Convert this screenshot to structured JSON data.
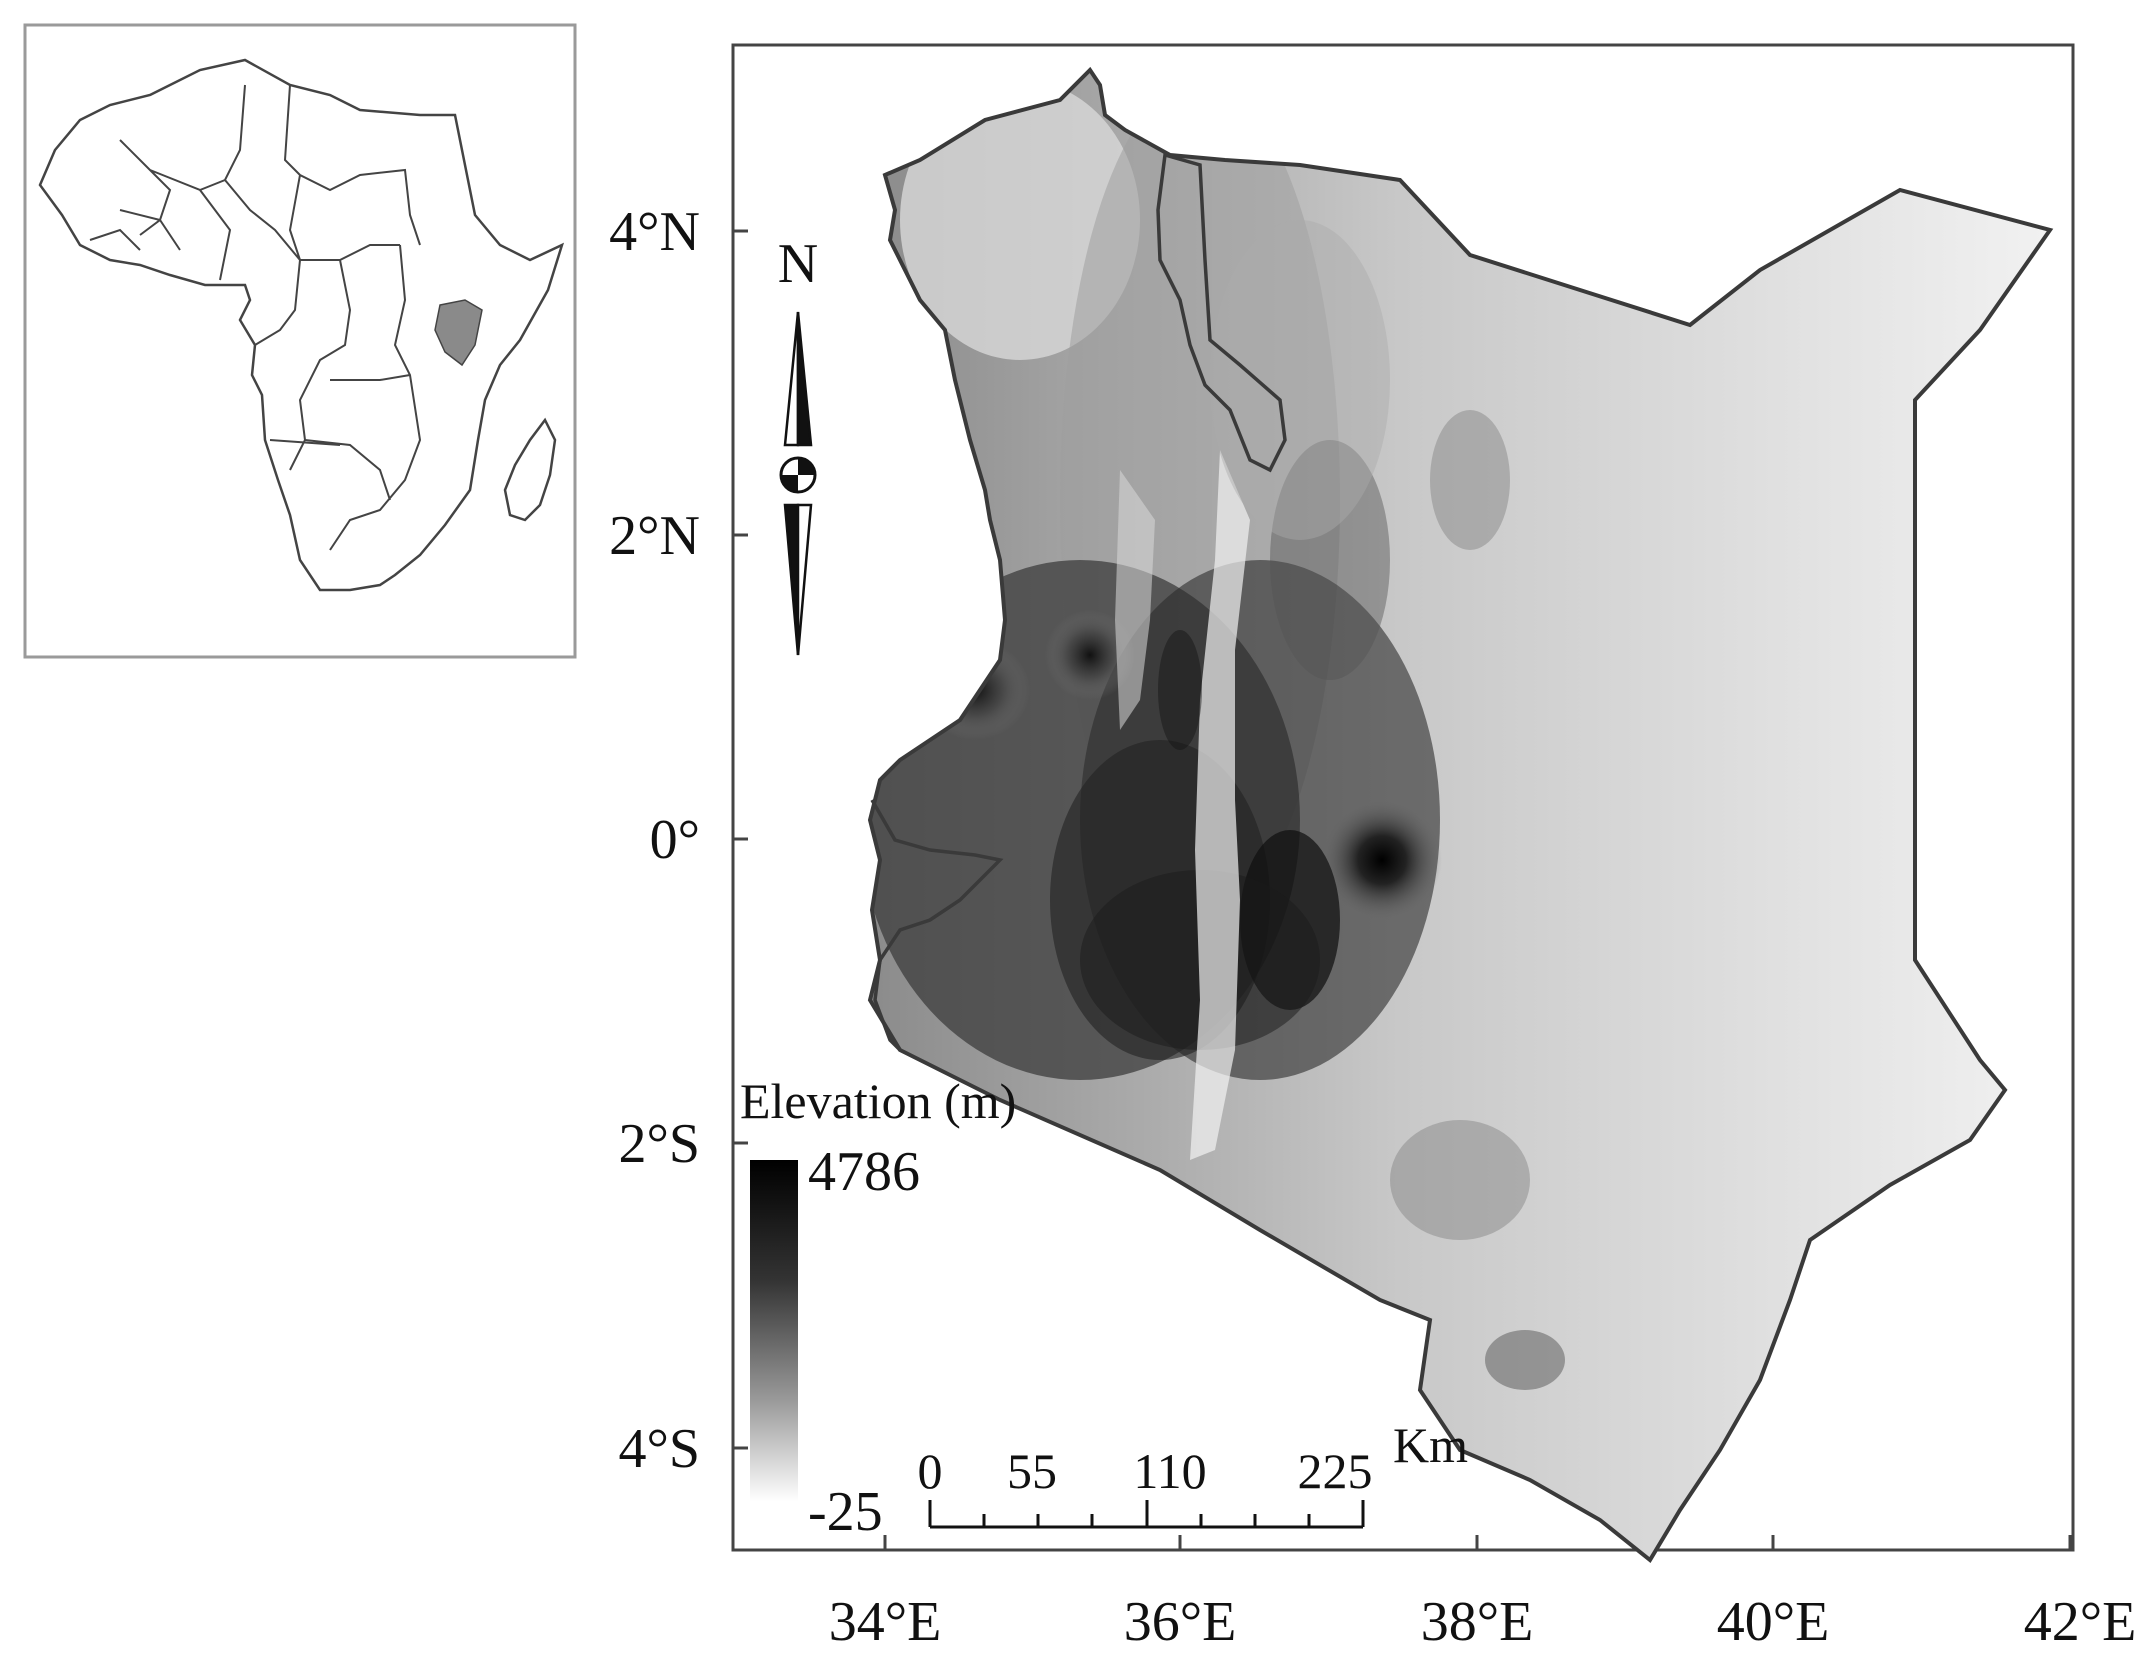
{
  "inset": {
    "highlight_color": "#8a8a8a",
    "border_color": "#9a9a9a"
  },
  "map": {
    "axes": {
      "x_ticks": [
        "34°E",
        "36°E",
        "38°E",
        "40°E",
        "42°E"
      ],
      "y_ticks": [
        "4°N",
        "2°N",
        "0°",
        "2°S",
        "4°S"
      ]
    },
    "north_arrow": {
      "label": "N"
    },
    "legend": {
      "title": "Elevation (m)",
      "max_label": "4786",
      "min_label": "-25",
      "colors": [
        "#000000",
        "#ffffff"
      ]
    },
    "scale_bar": {
      "labels": [
        "0",
        "55",
        "110",
        "225"
      ],
      "unit": "Km"
    }
  }
}
